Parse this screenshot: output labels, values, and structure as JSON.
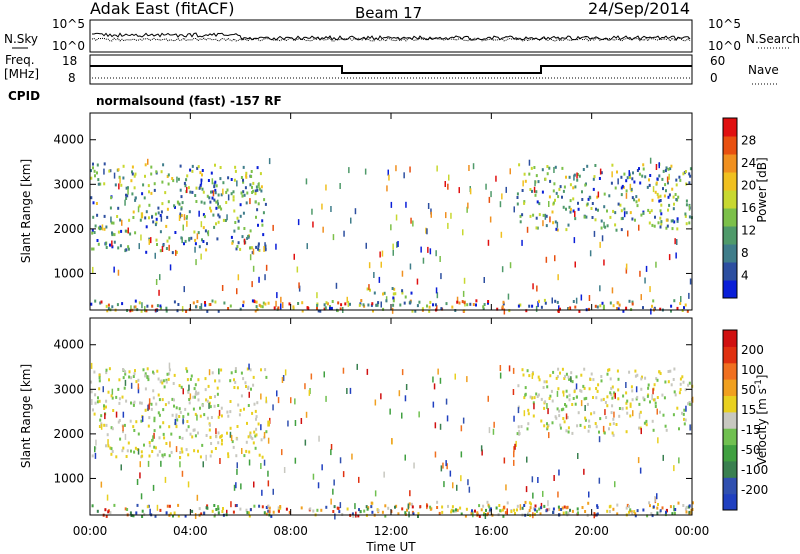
{
  "header": {
    "station": "Adak East (fitACF)",
    "beam": "Beam 17",
    "date": "24/Sep/2014"
  },
  "status_panel": {
    "nsky_label": "N.Sky",
    "nsearch_label": "N.Search",
    "noise_ticks_left": [
      "10^5",
      "10^0"
    ],
    "noise_ticks_right": [
      "10^5",
      "10^0"
    ],
    "freq_label": "Freq.",
    "freq_unit": "[MHz]",
    "freq_ticks": [
      "18",
      "8"
    ],
    "nave_label": "Nave",
    "nave_ticks": [
      "60",
      "0"
    ],
    "cpid_label": "CPID",
    "cpid_text": "normalsound (fast) -157 RF"
  },
  "colorbars": {
    "power": {
      "label": "Power [dB]",
      "ticks": [
        "28",
        "24",
        "20",
        "16",
        "12",
        "8",
        "4"
      ],
      "colors": [
        "#0a1fd8",
        "#2d4fa0",
        "#3f7d8a",
        "#4f9a6a",
        "#7cc04a",
        "#c8d830",
        "#f0c020",
        "#f09020",
        "#e85010",
        "#e01010"
      ]
    },
    "velocity": {
      "label": "Velocity [m s",
      "label_sup": "-1",
      "label_end": "]",
      "ticks": [
        "200",
        "100",
        "50",
        "15",
        "-15",
        "-50",
        "-100",
        "-200"
      ],
      "colors": [
        "#2040c0",
        "#3050b0",
        "#3a8050",
        "#40a040",
        "#70c050",
        "#c8c8c0",
        "#e8d020",
        "#f0a020",
        "#f07020",
        "#e03010",
        "#d01010"
      ]
    }
  },
  "axes": {
    "ylabel": "Slant Range [km]",
    "xlabel": "Time UT",
    "x_ticks": [
      "00:00",
      "04:00",
      "08:00",
      "12:00",
      "16:00",
      "20:00",
      "00:00"
    ],
    "y_ticks": [
      "4000",
      "3000",
      "2000",
      "1000"
    ]
  },
  "chart_data": [
    {
      "type": "heatmap",
      "quantity": "Power",
      "xlabel": "Time UT",
      "ylabel": "Slant Range [km]",
      "xlim": [
        0,
        24
      ],
      "ylim": [
        180,
        4600
      ],
      "colorbar_label": "Power [dB]",
      "colorbar_range": [
        0,
        32
      ],
      "echo_regions": [
        {
          "t_start": 0.0,
          "t_end": 7.0,
          "range_low": 1500,
          "range_high": 3500,
          "power_db": 12
        },
        {
          "t_start": 11.0,
          "t_end": 13.0,
          "range_low": 300,
          "range_high": 700,
          "power_db": 10
        },
        {
          "t_start": 17.0,
          "t_end": 24.0,
          "range_low": 2000,
          "range_high": 3500,
          "power_db": 10
        }
      ]
    },
    {
      "type": "heatmap",
      "quantity": "Velocity",
      "xlabel": "Time UT",
      "ylabel": "Slant Range [km]",
      "xlim": [
        0,
        24
      ],
      "ylim": [
        180,
        4600
      ],
      "colorbar_label": "Velocity [m s-1]",
      "colorbar_range": [
        -200,
        200
      ],
      "echo_regions": [
        {
          "t_start": 0.0,
          "t_end": 7.0,
          "range_low": 1500,
          "range_high": 3500,
          "velocity": 0
        },
        {
          "t_start": 11.0,
          "t_end": 24.0,
          "range_low": 200,
          "range_high": 500,
          "velocity": -50
        },
        {
          "t_start": 17.0,
          "t_end": 24.0,
          "range_low": 2000,
          "range_high": 3500,
          "velocity": 0
        }
      ]
    }
  ]
}
